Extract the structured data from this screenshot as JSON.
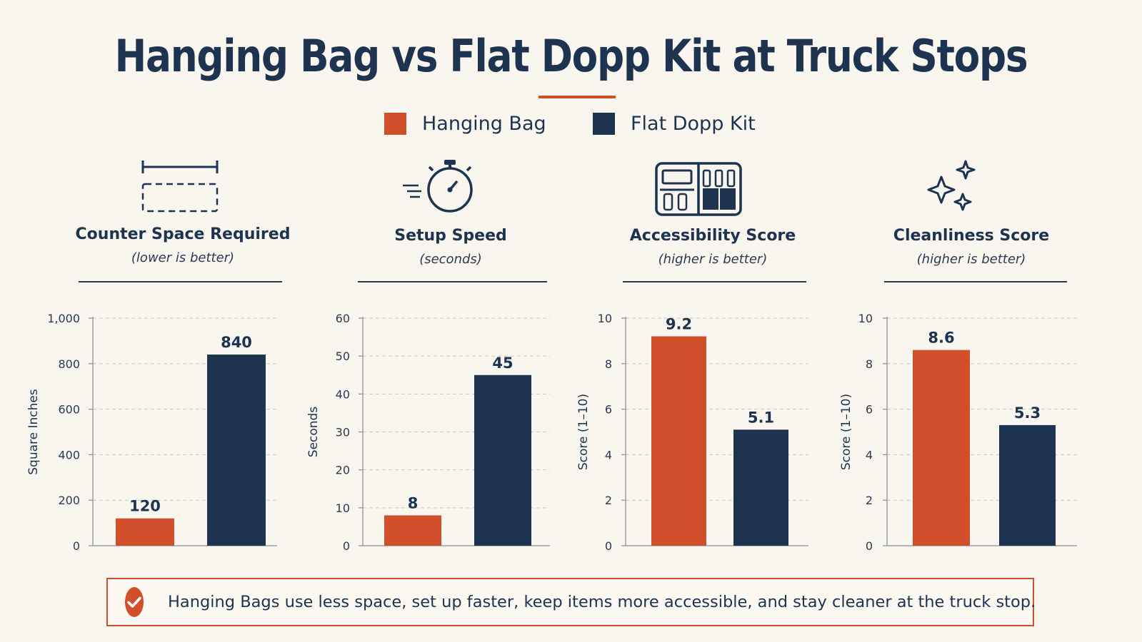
{
  "title": "Hanging Bag vs Flat Dopp Kit at Truck Stops",
  "colors": {
    "hanging": "#d24f2b",
    "flat": "#1e3350",
    "background": "#f9f6ef",
    "text": "#1e3350"
  },
  "legend": [
    {
      "label": "Hanging Bag",
      "color": "#d24f2b"
    },
    {
      "label": "Flat Dopp Kit",
      "color": "#1e3350"
    }
  ],
  "chart_data": [
    {
      "type": "bar",
      "title": "Counter Space Required",
      "subtitle": "(lower is better)",
      "icon": "ruler-dashed-box-icon",
      "ylabel": "Square Inches",
      "ylim": [
        0,
        1000
      ],
      "yticks": [
        "0",
        "200",
        "400",
        "600",
        "800",
        "1,000"
      ],
      "ytick_values": [
        0,
        200,
        400,
        600,
        800,
        1000
      ],
      "categories": [
        "Hanging Bag",
        "Flat Dopp Kit"
      ],
      "values": [
        120,
        840
      ],
      "value_labels": [
        "120",
        "840"
      ],
      "grid": true
    },
    {
      "type": "bar",
      "title": "Setup Speed",
      "subtitle": "(seconds)",
      "icon": "stopwatch-icon",
      "ylabel": "Seconds",
      "ylim": [
        0,
        60
      ],
      "yticks": [
        "0",
        "10",
        "20",
        "30",
        "40",
        "50",
        "60"
      ],
      "ytick_values": [
        0,
        10,
        20,
        30,
        40,
        50,
        60
      ],
      "categories": [
        "Hanging Bag",
        "Flat Dopp Kit"
      ],
      "values": [
        8,
        45
      ],
      "value_labels": [
        "8",
        "45"
      ],
      "grid": true
    },
    {
      "type": "bar",
      "title": "Accessibility Score",
      "subtitle": "(higher is better)",
      "icon": "compartments-icon",
      "ylabel": "Score (1–10)",
      "ylim": [
        0,
        10
      ],
      "yticks": [
        "0",
        "2",
        "4",
        "6",
        "8",
        "10"
      ],
      "ytick_values": [
        0,
        2,
        4,
        6,
        8,
        10
      ],
      "categories": [
        "Hanging Bag",
        "Flat Dopp Kit"
      ],
      "values": [
        9.2,
        5.1
      ],
      "value_labels": [
        "9.2",
        "5.1"
      ],
      "grid": true
    },
    {
      "type": "bar",
      "title": "Cleanliness Score",
      "subtitle": "(higher is better)",
      "icon": "sparkle-icon",
      "ylabel": "Score (1–10)",
      "ylim": [
        0,
        10
      ],
      "yticks": [
        "0",
        "2",
        "4",
        "6",
        "8",
        "10"
      ],
      "ytick_values": [
        0,
        2,
        4,
        6,
        8,
        10
      ],
      "categories": [
        "Hanging Bag",
        "Flat Dopp Kit"
      ],
      "values": [
        8.6,
        5.3
      ],
      "value_labels": [
        "8.6",
        "5.3"
      ],
      "grid": true
    }
  ],
  "callout": {
    "icon": "check-circle-icon",
    "text": "Hanging Bags use less space, set up faster, keep items more accessible, and stay cleaner at the truck stop."
  }
}
